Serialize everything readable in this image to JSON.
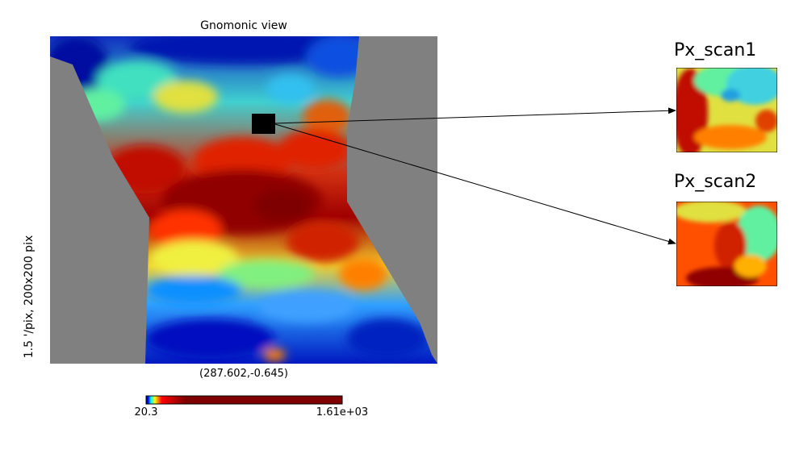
{
  "map": {
    "title": "Gnomonic view",
    "resolution_label": "1.5 '/pix,   200x200 pix",
    "center_coords": "(287.602,-0.645)"
  },
  "colorbar": {
    "min_label": "20.3",
    "max_label": "1.61e+03",
    "colormap": [
      "#00007f",
      "#0000ff",
      "#00ffff",
      "#ffff00",
      "#ff0000",
      "#7f0000"
    ]
  },
  "scans": [
    {
      "title": "Px_scan1"
    },
    {
      "title": "Px_scan2"
    }
  ],
  "colors": {
    "masked_region": "#808080",
    "selection_box": "#000000",
    "arrow": "#000000"
  }
}
